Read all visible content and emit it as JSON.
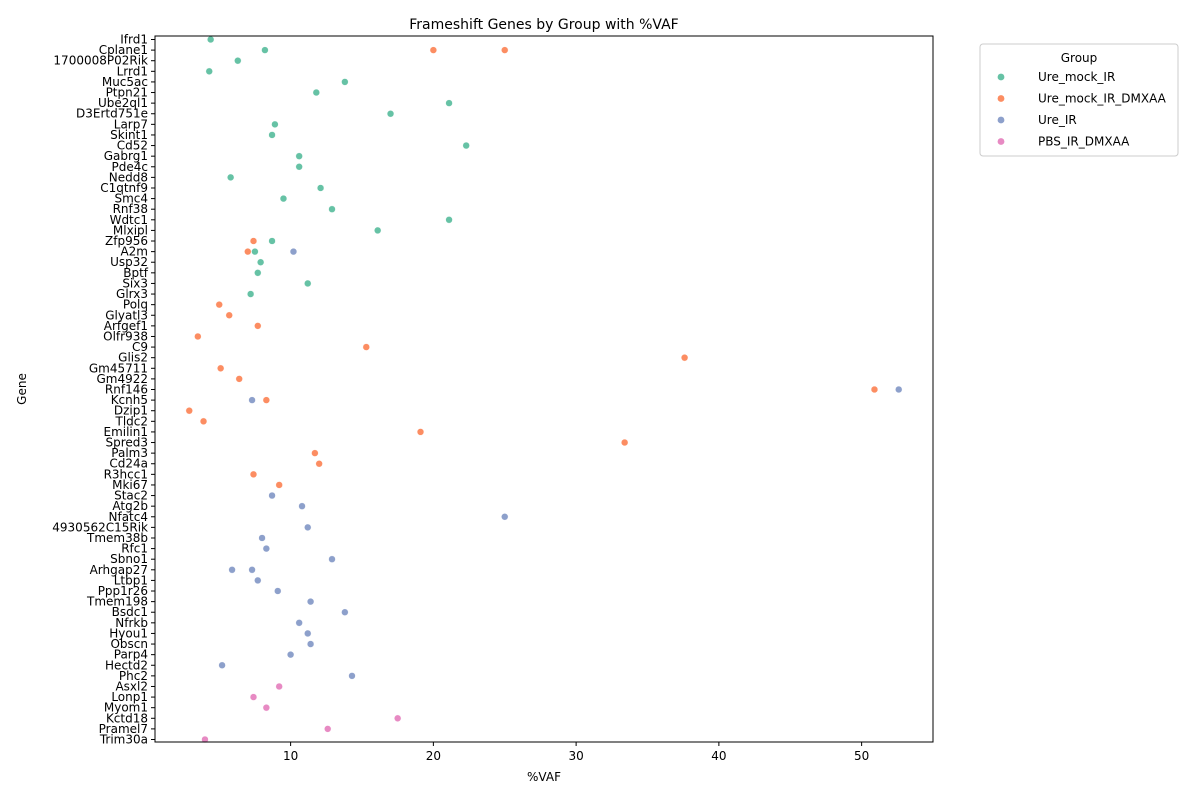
{
  "chart_data": {
    "type": "scatter",
    "title": "Frameshift Genes by Group with %VAF",
    "xlabel": "%VAF",
    "ylabel": "Gene",
    "xlim": [
      0.5,
      55
    ],
    "xticks": [
      10,
      20,
      30,
      40,
      50
    ],
    "grid": false,
    "legend": {
      "title": "Group",
      "placement": "outside-top-right"
    },
    "genes": [
      "Ifrd1",
      "Cplane1",
      "1700008P02Rik",
      "Lrrd1",
      "Muc5ac",
      "Ptpn21",
      "Ube2ql1",
      "D3Ertd751e",
      "Larp7",
      "Skint1",
      "Cd52",
      "Gabrg1",
      "Pde4c",
      "Nedd8",
      "C1qtnf9",
      "Smc4",
      "Rnf38",
      "Wdtc1",
      "Mlxipl",
      "Zfp956",
      "A2m",
      "Usp32",
      "Bptf",
      "Six3",
      "Glrx3",
      "Polq",
      "Glyatl3",
      "Arfgef1",
      "Olfr938",
      "C9",
      "Glis2",
      "Gm45711",
      "Gm4922",
      "Rnf146",
      "Kcnh5",
      "Dzip1",
      "Tldc2",
      "Emilin1",
      "Spred3",
      "Palm3",
      "Cd24a",
      "R3hcc1",
      "Mki67",
      "Stac2",
      "Atg2b",
      "Nfatc4",
      "4930562C15Rik",
      "Tmem38b",
      "Rfc1",
      "Sbno1",
      "Arhgap27",
      "Ltbp1",
      "Ppp1r26",
      "Tmem198",
      "Bsdc1",
      "Nfrkb",
      "Hyou1",
      "Obscn",
      "Parp4",
      "Hectd2",
      "Phc2",
      "Asxl2",
      "Lonp1",
      "Myom1",
      "Kctd18",
      "Pramel7",
      "Trim30a"
    ],
    "series": [
      {
        "name": "Ure_mock_IR",
        "color": "#66c2a5",
        "points": [
          {
            "gene": "Ifrd1",
            "x": 4.4
          },
          {
            "gene": "Cplane1",
            "x": 8.2
          },
          {
            "gene": "1700008P02Rik",
            "x": 6.3
          },
          {
            "gene": "Lrrd1",
            "x": 4.3
          },
          {
            "gene": "Muc5ac",
            "x": 13.8
          },
          {
            "gene": "Ptpn21",
            "x": 11.8
          },
          {
            "gene": "Ube2ql1",
            "x": 21.1
          },
          {
            "gene": "D3Ertd751e",
            "x": 17.0
          },
          {
            "gene": "Larp7",
            "x": 8.9
          },
          {
            "gene": "Skint1",
            "x": 8.7
          },
          {
            "gene": "Cd52",
            "x": 22.3
          },
          {
            "gene": "Gabrg1",
            "x": 10.6
          },
          {
            "gene": "Pde4c",
            "x": 10.6
          },
          {
            "gene": "Nedd8",
            "x": 5.8
          },
          {
            "gene": "C1qtnf9",
            "x": 12.1
          },
          {
            "gene": "Smc4",
            "x": 9.5
          },
          {
            "gene": "Rnf38",
            "x": 12.9
          },
          {
            "gene": "Wdtc1",
            "x": 21.1
          },
          {
            "gene": "Mlxipl",
            "x": 16.1
          },
          {
            "gene": "Zfp956",
            "x": 8.7
          },
          {
            "gene": "A2m",
            "x": 7.5
          },
          {
            "gene": "Usp32",
            "x": 7.9
          },
          {
            "gene": "Bptf",
            "x": 7.7
          },
          {
            "gene": "Six3",
            "x": 11.2
          },
          {
            "gene": "Glrx3",
            "x": 7.2
          }
        ]
      },
      {
        "name": "Ure_mock_IR_DMXAA",
        "color": "#fc8d62",
        "points": [
          {
            "gene": "Cplane1",
            "x": 20.0
          },
          {
            "gene": "Cplane1",
            "x": 25.0
          },
          {
            "gene": "Zfp956",
            "x": 7.4
          },
          {
            "gene": "A2m",
            "x": 7.0
          },
          {
            "gene": "Polq",
            "x": 5.0
          },
          {
            "gene": "Glyatl3",
            "x": 5.7
          },
          {
            "gene": "Arfgef1",
            "x": 7.7
          },
          {
            "gene": "Olfr938",
            "x": 3.5
          },
          {
            "gene": "C9",
            "x": 15.3
          },
          {
            "gene": "Glis2",
            "x": 37.6
          },
          {
            "gene": "Gm45711",
            "x": 5.1
          },
          {
            "gene": "Gm4922",
            "x": 6.4
          },
          {
            "gene": "Rnf146",
            "x": 50.9
          },
          {
            "gene": "Kcnh5",
            "x": 8.3
          },
          {
            "gene": "Dzip1",
            "x": 2.9
          },
          {
            "gene": "Tldc2",
            "x": 3.9
          },
          {
            "gene": "Emilin1",
            "x": 19.1
          },
          {
            "gene": "Spred3",
            "x": 33.4
          },
          {
            "gene": "Palm3",
            "x": 11.7
          },
          {
            "gene": "Cd24a",
            "x": 12.0
          },
          {
            "gene": "R3hcc1",
            "x": 7.4
          },
          {
            "gene": "Mki67",
            "x": 9.2
          }
        ]
      },
      {
        "name": "Ure_IR",
        "color": "#8da0cb",
        "points": [
          {
            "gene": "A2m",
            "x": 10.2
          },
          {
            "gene": "Rnf146",
            "x": 52.6
          },
          {
            "gene": "Kcnh5",
            "x": 7.3
          },
          {
            "gene": "Stac2",
            "x": 8.7
          },
          {
            "gene": "Atg2b",
            "x": 10.8
          },
          {
            "gene": "Nfatc4",
            "x": 25.0
          },
          {
            "gene": "4930562C15Rik",
            "x": 11.2
          },
          {
            "gene": "Tmem38b",
            "x": 8.0
          },
          {
            "gene": "Rfc1",
            "x": 8.3
          },
          {
            "gene": "Sbno1",
            "x": 12.9
          },
          {
            "gene": "Arhgap27",
            "x": 5.9
          },
          {
            "gene": "Arhgap27",
            "x": 7.3
          },
          {
            "gene": "Ltbp1",
            "x": 7.7
          },
          {
            "gene": "Ppp1r26",
            "x": 9.1
          },
          {
            "gene": "Tmem198",
            "x": 11.4
          },
          {
            "gene": "Bsdc1",
            "x": 13.8
          },
          {
            "gene": "Nfrkb",
            "x": 10.6
          },
          {
            "gene": "Hyou1",
            "x": 11.2
          },
          {
            "gene": "Obscn",
            "x": 11.4
          },
          {
            "gene": "Parp4",
            "x": 10.0
          },
          {
            "gene": "Hectd2",
            "x": 5.2
          },
          {
            "gene": "Phc2",
            "x": 14.3
          }
        ]
      },
      {
        "name": "PBS_IR_DMXAA",
        "color": "#e78ac3",
        "points": [
          {
            "gene": "Asxl2",
            "x": 9.2
          },
          {
            "gene": "Lonp1",
            "x": 7.4
          },
          {
            "gene": "Myom1",
            "x": 8.3
          },
          {
            "gene": "Kctd18",
            "x": 17.5
          },
          {
            "gene": "Pramel7",
            "x": 12.6
          },
          {
            "gene": "Trim30a",
            "x": 4.0
          }
        ]
      }
    ]
  }
}
